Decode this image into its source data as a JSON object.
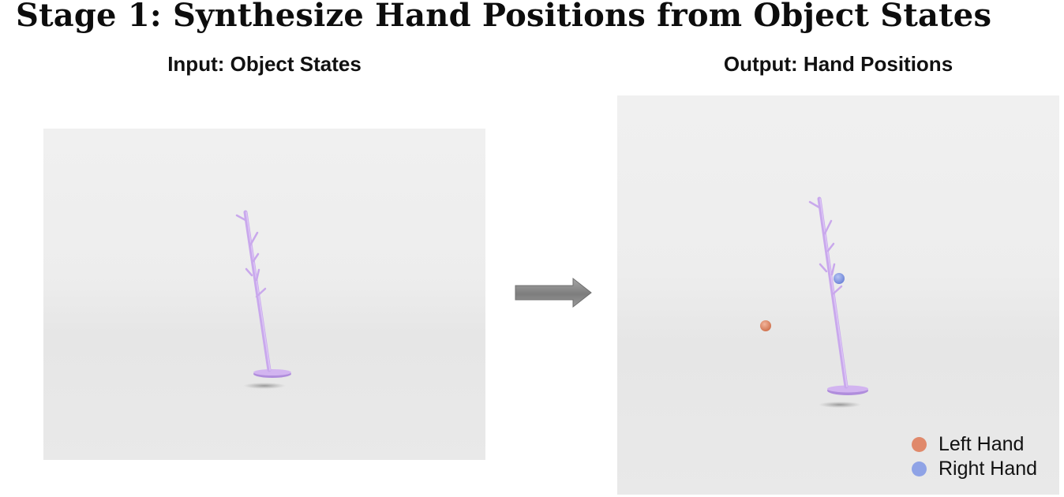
{
  "slide": {
    "title": "Stage 1: Synthesize Hand Positions from Object States"
  },
  "input_panel": {
    "label": "Input: Object States",
    "object_icon": "coat-rack-icon"
  },
  "output_panel": {
    "label": "Output: Hand Positions",
    "object_icon": "coat-rack-icon"
  },
  "arrow": {
    "icon": "right-arrow-icon"
  },
  "legend": {
    "items": [
      {
        "label": "Left Hand",
        "color": "#e0896b"
      },
      {
        "label": "Right Hand",
        "color": "#8fa3e6"
      }
    ]
  },
  "colors": {
    "object": "#c9a8ec",
    "object_shade": "#b08ddc",
    "left_hand": "#e0896b",
    "right_hand": "#8fa3e6",
    "arrow_fill": "#8a8a8a"
  }
}
